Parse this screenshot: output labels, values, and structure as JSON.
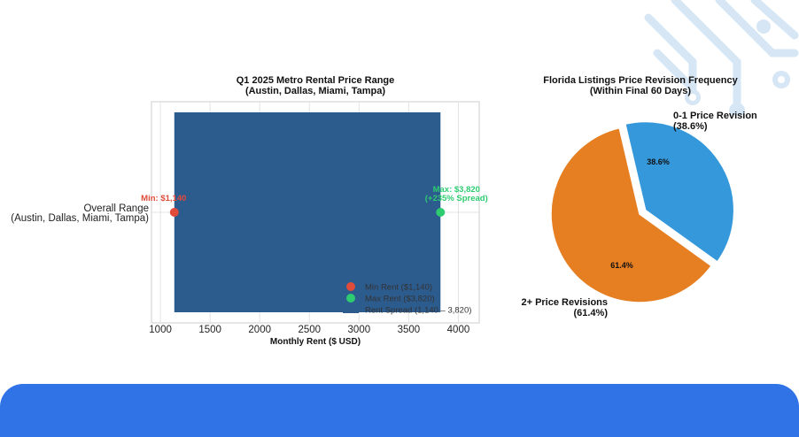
{
  "colors": {
    "bar": "#2c5b8e",
    "min_point": "#e04b3a",
    "max_point": "#2ecc71",
    "pie_one": "#3498db",
    "pie_two": "#e67e22",
    "bottom_bar": "#2f73e6"
  },
  "chart_data": [
    {
      "type": "bar",
      "orientation": "horizontal",
      "title": "Q1 2025 Metro Rental Price Range\n(Austin, Dallas, Miami, Tampa)",
      "xlabel": "Monthly Rent ($ USD)",
      "ylabel": "",
      "category": "Overall Range\n(Austin, Dallas, Miami, Tampa)",
      "xlim": [
        910,
        4210
      ],
      "xticks": [
        "1000",
        "1500",
        "2000",
        "2500",
        "3000",
        "3500",
        "4000"
      ],
      "grid": true,
      "min_value": 1140,
      "max_value": 3820,
      "min_annotation": "Min: $1,140",
      "max_annotation": "Max: $3,820\n(+235% Spread)",
      "legend_position": "lower-right",
      "legend": [
        "Min Rent ($1,140)",
        "Max Rent ($3,820)",
        "Rent Spread (1,140 – 3,820)"
      ]
    },
    {
      "type": "pie",
      "title": "Florida Listings Price Revision Frequency\n(Within Final 60 Days)",
      "slices": [
        {
          "label": "0-1 Price Revision\n(38.6%)",
          "value": 38.6,
          "pct_label": "38.6%",
          "exploded": true
        },
        {
          "label": "2+ Price Revisions\n(61.4%)",
          "value": 61.4,
          "pct_label": "61.4%",
          "exploded": false
        }
      ]
    }
  ]
}
